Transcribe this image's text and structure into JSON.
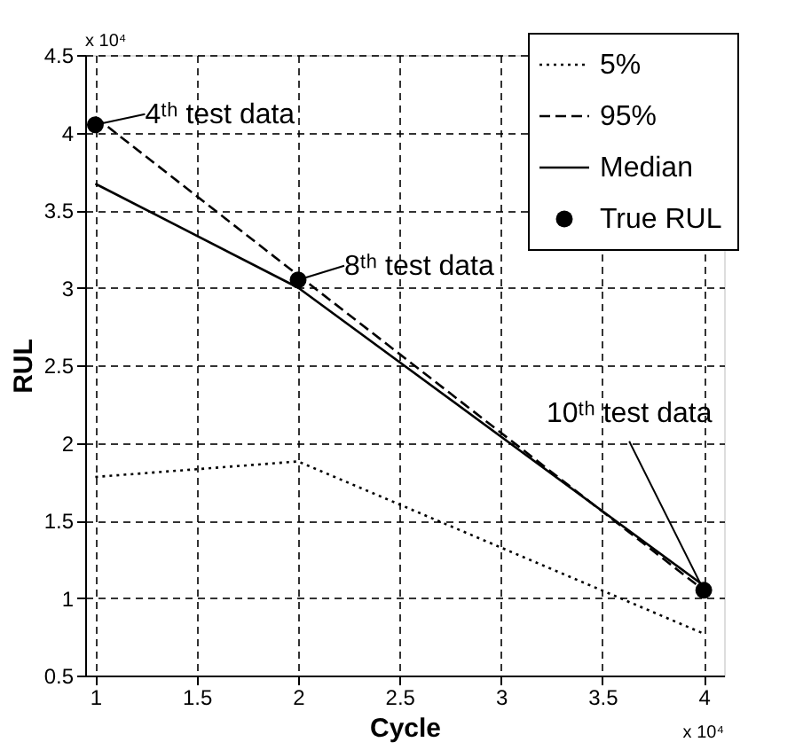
{
  "chart_data": {
    "type": "line",
    "xlabel": "Cycle",
    "ylabel": "RUL",
    "x": [
      1,
      2,
      4
    ],
    "xlim": [
      0.95,
      4.1
    ],
    "xticks": [
      1,
      1.5,
      2,
      2.5,
      3,
      3.5,
      4
    ],
    "ylim": [
      0.5,
      4.5
    ],
    "yticks": [
      0.5,
      1,
      1.5,
      2,
      2.5,
      3,
      3.5,
      4,
      4.5
    ],
    "grid": true,
    "legend": "top right",
    "series": [
      {
        "name": "5%",
        "color": "#000000",
        "line_style": "dotted",
        "values": [
          1.78,
          1.88,
          0.77
        ]
      },
      {
        "name": "95%",
        "color": "#000000",
        "line_style": "dashed",
        "values": [
          4.1,
          3.08,
          1.05
        ]
      },
      {
        "name": "Median",
        "color": "#000000",
        "line_style": "solid",
        "values": [
          3.67,
          3.0,
          1.08
        ]
      },
      {
        "name": "True RUL",
        "type": "scatter",
        "marker": "circle",
        "color": "#000000",
        "values": [
          4.05,
          3.05,
          1.05
        ]
      }
    ],
    "annotations": [
      "x 10⁴",
      "x 10⁴",
      {
        "text": "4ᵗʰ test data",
        "x": 1,
        "y": 4.05
      },
      {
        "text": "8ᵗʰ test data",
        "x": 2,
        "y": 3.05
      },
      {
        "text": "10ᵗʰ test data",
        "x": 4,
        "y": 1.05
      }
    ]
  }
}
